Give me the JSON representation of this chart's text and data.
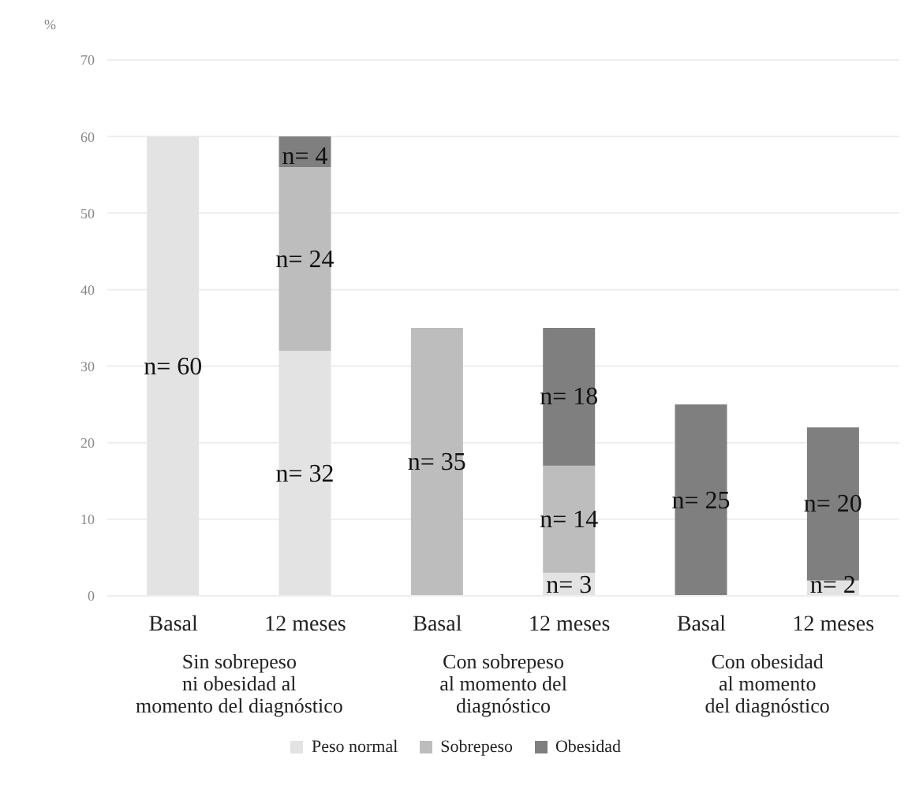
{
  "chart_data": {
    "type": "bar",
    "stacked": true,
    "ylabel": "%",
    "categories": [
      "Basal",
      "12 meses",
      "Basal",
      "12 meses",
      "Basal",
      "12 meses"
    ],
    "series": [
      {
        "name": "Peso normal",
        "color": "#e3e3e3",
        "values": [
          60,
          32,
          null,
          3,
          null,
          2
        ],
        "value_labels": [
          "n= 60",
          "n= 32",
          null,
          "n= 3",
          null,
          "n= 2"
        ]
      },
      {
        "name": "Sobrepeso",
        "color": "#bdbdbd",
        "values": [
          null,
          24,
          35,
          14,
          null,
          null
        ],
        "value_labels": [
          null,
          "n= 24",
          "n= 35",
          "n= 14",
          null,
          null
        ]
      },
      {
        "name": "Obesidad",
        "color": "#7f7f7f",
        "values": [
          null,
          4,
          null,
          18,
          25,
          20
        ],
        "value_labels": [
          null,
          "n= 4",
          null,
          "n= 18",
          "n= 25",
          "n= 20"
        ]
      }
    ],
    "annotations": [
      "Sin sobrepeso\nni obesidad al\nmomento del diagnóstico",
      "Con sobrepeso\nal momento del\ndiagnóstico",
      "Con obesidad\nal momento\ndel diagnóstico"
    ],
    "ylim": [
      0,
      70
    ],
    "yticks": [
      0,
      10,
      20,
      30,
      40,
      50,
      60,
      70
    ],
    "grid": "y",
    "legend": "bottom"
  }
}
